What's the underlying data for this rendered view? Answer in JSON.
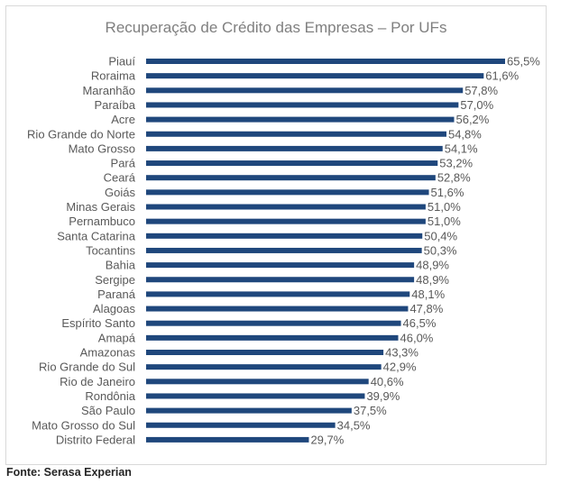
{
  "source": "Fonte: Serasa Experian",
  "colors": {
    "bar": "#1f477c",
    "title": "#7f7f7f",
    "label": "#595959",
    "border": "#d9d9d9"
  },
  "chart_data": {
    "type": "bar",
    "orientation": "horizontal",
    "title": "Recuperação de Crédito das Empresas – Por UFs",
    "xlabel": "",
    "ylabel": "",
    "grid": false,
    "legend": "none",
    "categories": [
      "Piauí",
      "Roraima",
      "Maranhão",
      "Paraíba",
      "Acre",
      "Rio Grande do Norte",
      "Mato Grosso",
      "Pará",
      "Ceará",
      "Goiás",
      "Minas Gerais",
      "Pernambuco",
      "Santa Catarina",
      "Tocantins",
      "Bahia",
      "Sergipe",
      "Paraná",
      "Alagoas",
      "Espírito Santo",
      "Amapá",
      "Amazonas",
      "Rio Grande do Sul",
      "Rio de Janeiro",
      "Rondônia",
      "São Paulo",
      "Mato Grosso do Sul",
      "Distrito Federal"
    ],
    "values": [
      65.5,
      61.6,
      57.8,
      57.0,
      56.2,
      54.8,
      54.1,
      53.2,
      52.8,
      51.6,
      51.0,
      51.0,
      50.4,
      50.3,
      48.9,
      48.9,
      48.1,
      47.8,
      46.5,
      46.0,
      43.3,
      42.9,
      40.6,
      39.9,
      37.5,
      34.5,
      29.7
    ],
    "value_labels": [
      "65,5%",
      "61,6%",
      "57,8%",
      "57,0%",
      "56,2%",
      "54,8%",
      "54,1%",
      "53,2%",
      "52,8%",
      "51,6%",
      "51,0%",
      "51,0%",
      "50,4%",
      "50,3%",
      "48,9%",
      "48,9%",
      "48,1%",
      "47,8%",
      "46,5%",
      "46,0%",
      "43,3%",
      "42,9%",
      "40,6%",
      "39,9%",
      "37,5%",
      "34,5%",
      "29,7%"
    ],
    "xlim": [
      0,
      65.5
    ]
  }
}
